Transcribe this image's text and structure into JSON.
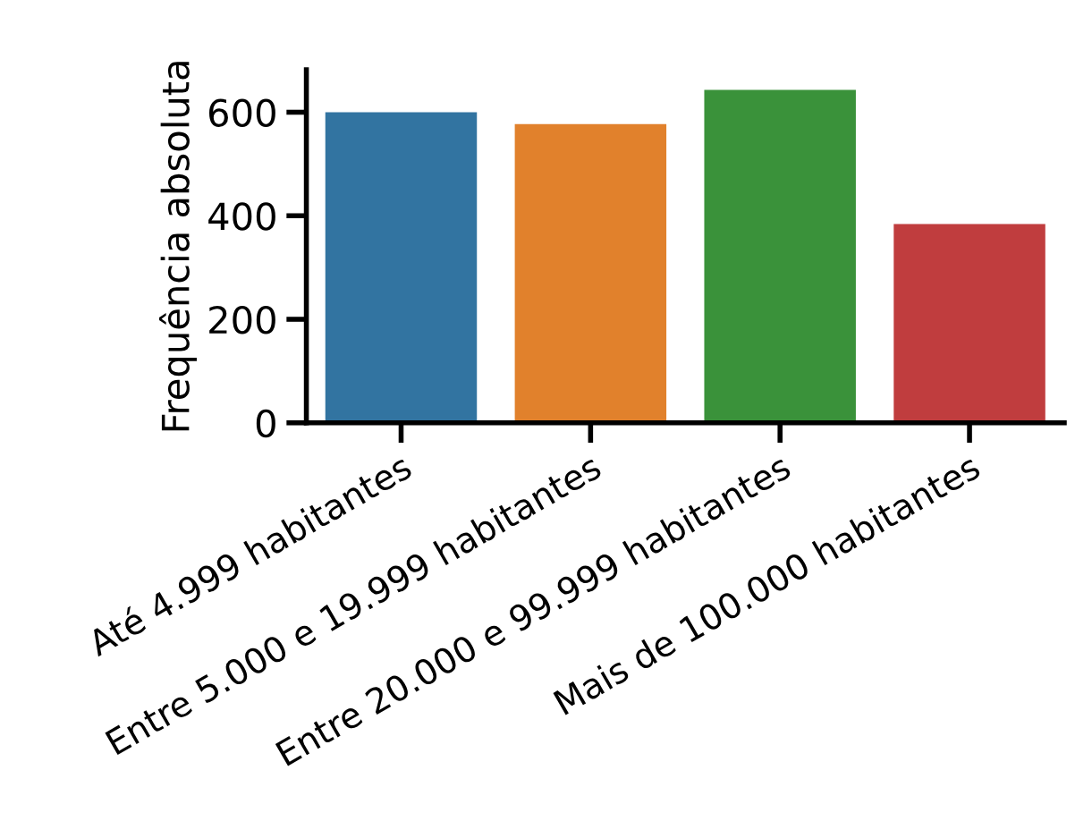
{
  "chart_data": {
    "type": "bar",
    "ylabel": "Frequência absoluta",
    "categories": [
      "Até 4.999 habitantes",
      "Entre 5.000 e 19.999 habitantes",
      "Entre 20.000 e 99.999 habitantes",
      "Mais de 100.000 habitantes"
    ],
    "values": [
      600,
      577,
      643,
      384
    ],
    "colors": [
      "#3274a1",
      "#e1812c",
      "#3a923a",
      "#c03d3e"
    ],
    "ylim": [
      0,
      682
    ],
    "yticks": [
      0,
      200,
      400,
      600
    ],
    "grid": false,
    "legend": false
  }
}
